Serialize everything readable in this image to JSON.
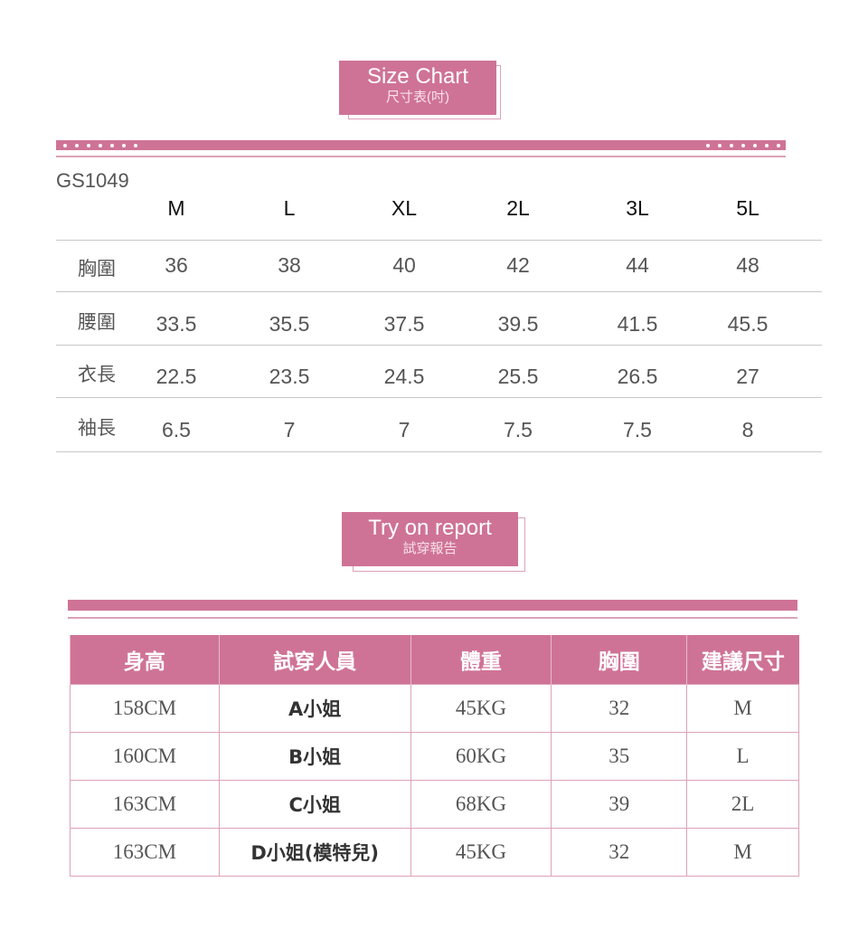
{
  "size_chart": {
    "title": "Size Chart",
    "subtitle": "尺寸表(吋)",
    "code": "GS1049",
    "sizes": [
      "M",
      "L",
      "XL",
      "2L",
      "3L",
      "5L"
    ],
    "rows": [
      {
        "label": "胸圍",
        "values": [
          "36",
          "38",
          "40",
          "42",
          "44",
          "48"
        ]
      },
      {
        "label": "腰圍",
        "values": [
          "33.5",
          "35.5",
          "37.5",
          "39.5",
          "41.5",
          "45.5"
        ]
      },
      {
        "label": "衣長",
        "values": [
          "22.5",
          "23.5",
          "24.5",
          "25.5",
          "26.5",
          "27"
        ]
      },
      {
        "label": "袖長",
        "values": [
          "6.5",
          "7",
          "7",
          "7.5",
          "7.5",
          "8"
        ]
      }
    ]
  },
  "try_on": {
    "title": "Try on report",
    "subtitle": "試穿報告",
    "headers": [
      "身高",
      "試穿人員",
      "體重",
      "胸圍",
      "建議尺寸"
    ],
    "rows": [
      [
        "158CM",
        "A小姐",
        "45KG",
        "32",
        "M"
      ],
      [
        "160CM",
        "B小姐",
        "60KG",
        "35",
        "L"
      ],
      [
        "163CM",
        "C小姐",
        "68KG",
        "39",
        "2L"
      ],
      [
        "163CM",
        "D小姐(模特兒)",
        "45KG",
        "32",
        "M"
      ]
    ]
  },
  "colors": {
    "accent": "#cf7396",
    "accent_light": "#dca2b8"
  }
}
